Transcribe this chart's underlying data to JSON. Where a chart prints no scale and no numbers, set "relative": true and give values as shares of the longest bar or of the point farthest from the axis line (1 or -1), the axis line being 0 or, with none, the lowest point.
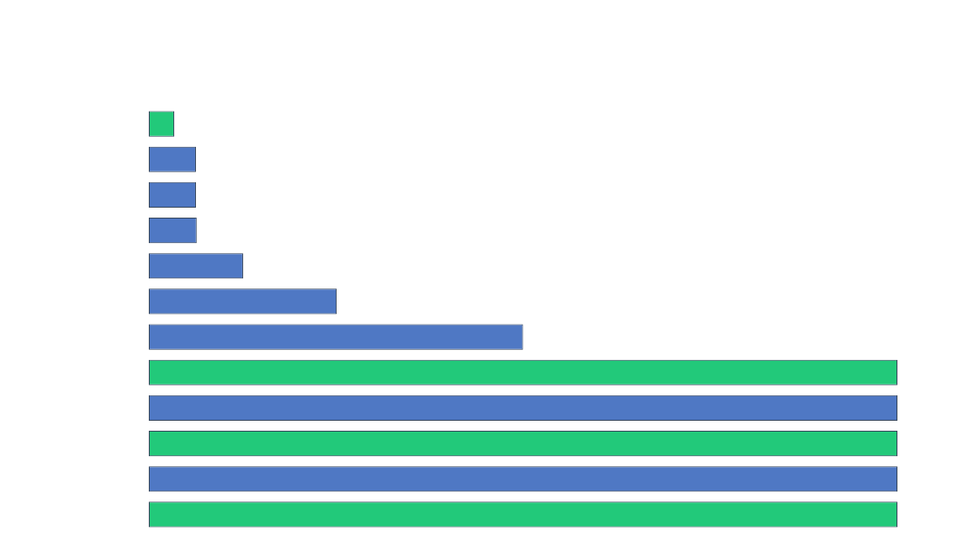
{
  "chart_data": {
    "type": "bar",
    "orientation": "horizontal",
    "relative": true,
    "categories": [
      null,
      null,
      null,
      null,
      null,
      null,
      null,
      null,
      null,
      null,
      null,
      null
    ],
    "values": [
      0.034,
      0.063,
      0.063,
      0.064,
      0.126,
      0.251,
      0.5,
      1,
      1,
      1,
      1,
      1
    ],
    "colors": [
      "#22c97a",
      "#4f78c4",
      "#4f78c4",
      "#4f78c4",
      "#4f78c4",
      "#4f78c4",
      "#4f78c4",
      "#22c97a",
      "#4f78c4",
      "#22c97a",
      "#4f78c4",
      "#22c97a"
    ]
  }
}
